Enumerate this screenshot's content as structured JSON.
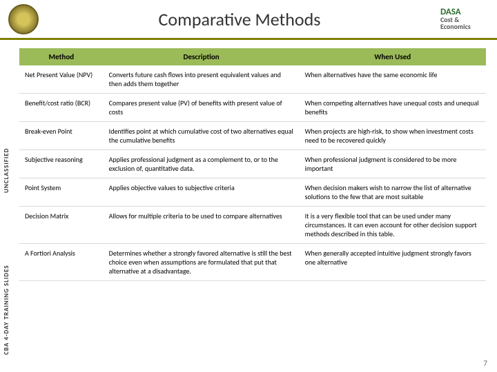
{
  "header": {
    "title": "Comparative Methods",
    "logo_line1": "DASA",
    "logo_line2": "Cost &",
    "logo_line3": "Economics"
  },
  "sidebar": {
    "classification": "UNCLASSIFIED",
    "course": "CBA 4-DAY TRAINING SLIDES"
  },
  "table": {
    "headers": [
      "Method",
      "Description",
      "When Used"
    ],
    "header_bg": "#9bbb59",
    "rows": [
      {
        "method": "Net Present Value (NPV)",
        "description": "Converts future cash flows into present equivalent values and then adds them together",
        "when": "When alternatives have the same economic life"
      },
      {
        "method": "Benefit/cost ratio (BCR)",
        "description": "Compares present value (PV) of benefits with present value of costs",
        "when": "When competing alternatives have unequal costs and unequal benefits"
      },
      {
        "method": "Break-even Point",
        "description": "Identifies point at which cumulative cost of two alternatives equal the cumulative benefits",
        "when": "When projects are high-risk, to show when investment costs need to be recovered quickly"
      },
      {
        "method": "Subjective reasoning",
        "description": "Applies professional judgment as a complement to, or to the exclusion of, quantitative data.",
        "when": "When professional judgment is considered to be more important"
      },
      {
        "method": "Point System",
        "description": "Applies objective values to subjective criteria",
        "when": "When decision makers wish to narrow the list of alternative solutions to the few that are most suitable"
      },
      {
        "method": "Decision Matrix",
        "description": "Allows for multiple criteria to be used to compare alternatives",
        "when": "It is a very flexible tool that can be used under many circumstances. It can even account for other decision support methods described in this table."
      },
      {
        "method": "A Fortiori Analysis",
        "description": "Determines whether a strongly favored alternative is still the best choice even when assumptions are formulated that put that alternative at a disadvantage.",
        "when": "When generally accepted intuitive judgment strongly favors one alternative"
      }
    ]
  },
  "page_number": "7"
}
